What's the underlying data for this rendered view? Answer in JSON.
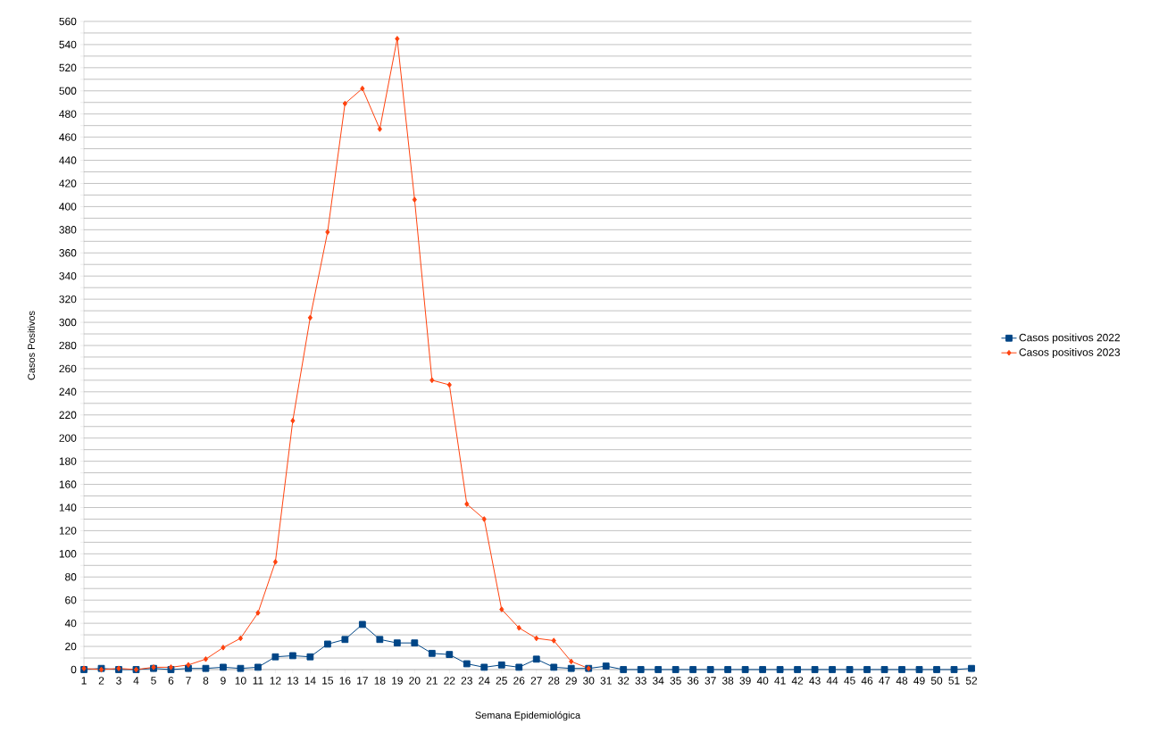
{
  "chart_data": {
    "type": "line",
    "xlabel": "Semana Epidemiológica",
    "ylabel": "Casos Positivos",
    "categories": [
      "1",
      "2",
      "3",
      "4",
      "5",
      "6",
      "7",
      "8",
      "9",
      "10",
      "11",
      "12",
      "13",
      "14",
      "15",
      "16",
      "17",
      "18",
      "19",
      "20",
      "21",
      "22",
      "23",
      "24",
      "25",
      "26",
      "27",
      "28",
      "29",
      "30",
      "31",
      "32",
      "33",
      "34",
      "35",
      "36",
      "37",
      "38",
      "39",
      "40",
      "41",
      "42",
      "43",
      "44",
      "45",
      "46",
      "47",
      "48",
      "49",
      "50",
      "51",
      "52"
    ],
    "series": [
      {
        "name": "Casos positivos 2022",
        "color": "#004586",
        "marker": "square",
        "values": [
          0,
          1,
          0,
          0,
          1,
          0,
          1,
          1,
          2,
          1,
          2,
          11,
          12,
          11,
          22,
          26,
          39,
          26,
          23,
          23,
          14,
          13,
          5,
          2,
          4,
          2,
          9,
          2,
          1,
          1,
          3,
          0,
          0,
          0,
          0,
          0,
          0,
          0,
          0,
          0,
          0,
          0,
          0,
          0,
          0,
          0,
          0,
          0,
          0,
          0,
          0,
          1
        ]
      },
      {
        "name": "Casos positivos 2023",
        "color": "#ff420e",
        "marker": "diamond",
        "values": [
          1,
          0,
          1,
          0,
          2,
          2,
          4,
          9,
          19,
          27,
          49,
          93,
          215,
          304,
          378,
          489,
          502,
          467,
          545,
          406,
          250,
          246,
          143,
          130,
          52,
          36,
          27,
          25,
          7,
          1,
          null,
          null,
          null,
          null,
          null,
          null,
          null,
          null,
          null,
          null,
          null,
          null,
          null,
          null,
          null,
          null,
          null,
          null,
          null,
          null,
          null,
          null
        ]
      }
    ],
    "ylim": [
      0,
      560
    ],
    "yticks": [
      0,
      {
        "value": 10,
        "label": null
      },
      20,
      {
        "value": 30,
        "label": null
      },
      40,
      {
        "value": 50,
        "label": null
      },
      60,
      {
        "value": 70,
        "label": null
      },
      80,
      {
        "value": 90,
        "label": null
      },
      100,
      {
        "value": 110,
        "label": null
      },
      120,
      {
        "value": 130,
        "label": null
      },
      140,
      {
        "value": 150,
        "label": null
      },
      160,
      {
        "value": 170,
        "label": null
      },
      180,
      {
        "value": 190,
        "label": null
      },
      200,
      {
        "value": 210,
        "label": null
      },
      220,
      {
        "value": 230,
        "label": null
      },
      240,
      {
        "value": 250,
        "label": null
      },
      260,
      {
        "value": 270,
        "label": null
      },
      280,
      {
        "value": 290,
        "label": null
      },
      300,
      {
        "value": 310,
        "label": null
      },
      320,
      {
        "value": 330,
        "label": null
      },
      340,
      {
        "value": 350,
        "label": null
      },
      360,
      {
        "value": 370,
        "label": null
      },
      380,
      {
        "value": 390,
        "label": null
      },
      400,
      {
        "value": 410,
        "label": null
      },
      420,
      {
        "value": 430,
        "label": null
      },
      440,
      {
        "value": 450,
        "label": null
      },
      460,
      {
        "value": 470,
        "label": null
      },
      480,
      {
        "value": 490,
        "label": null
      },
      500,
      {
        "value": 510,
        "label": null
      },
      520,
      {
        "value": 530,
        "label": null
      },
      540,
      {
        "value": 550,
        "label": null
      },
      560
    ],
    "grid": "y",
    "legend": "right",
    "line_style": "solid"
  }
}
